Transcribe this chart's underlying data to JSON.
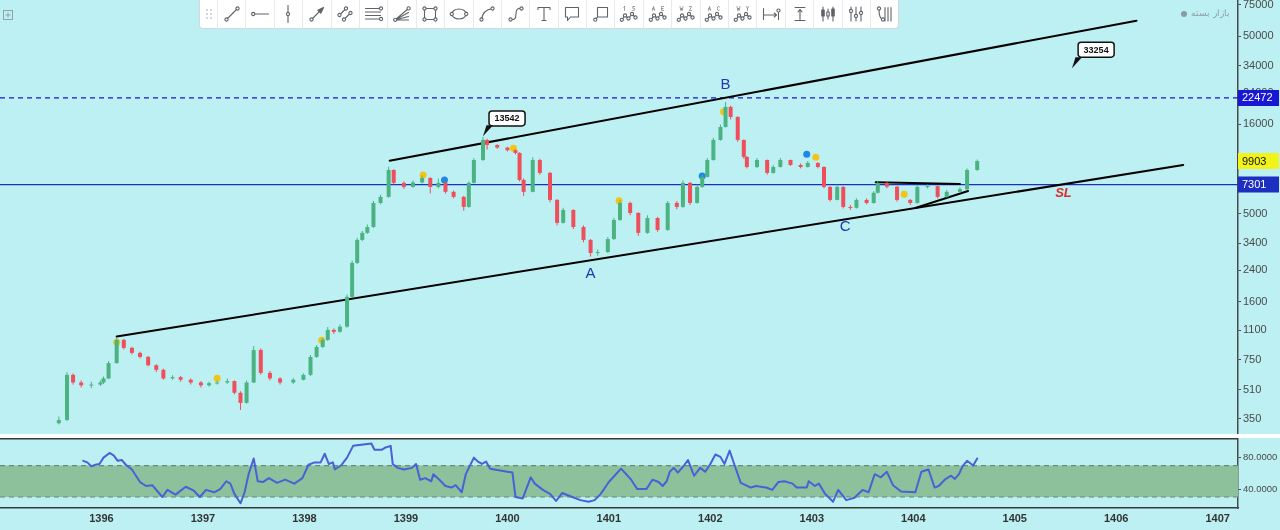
{
  "chart_data": [
    {
      "type": "candlestick",
      "x": [
        1395.58,
        1395.66,
        1395.72,
        1395.8,
        1395.9,
        1395.99,
        1396.02,
        1396.07,
        1396.15,
        1396.22,
        1396.3,
        1396.38,
        1396.46,
        1396.54,
        1396.61,
        1396.7,
        1396.78,
        1396.88,
        1396.98,
        1397.06,
        1397.14,
        1397.24,
        1397.31,
        1397.37,
        1397.43,
        1397.5,
        1397.57,
        1397.66,
        1397.76,
        1397.89,
        1397.99,
        1398.06,
        1398.12,
        1398.18,
        1398.23,
        1398.29,
        1398.35,
        1398.42,
        1398.47,
        1398.52,
        1398.57,
        1398.62,
        1398.68,
        1398.75,
        1398.83,
        1398.88,
        1398.98,
        1399.07,
        1399.16,
        1399.24,
        1399.32,
        1399.39,
        1399.47,
        1399.57,
        1399.62,
        1399.67,
        1399.76,
        1399.8,
        1399.9,
        1400.0,
        1400.08,
        1400.12,
        1400.16,
        1400.25,
        1400.32,
        1400.42,
        1400.49,
        1400.55,
        1400.65,
        1400.75,
        1400.82,
        1400.89,
        1400.99,
        1401.05,
        1401.11,
        1401.21,
        1401.29,
        1401.38,
        1401.48,
        1401.58,
        1401.67,
        1401.73,
        1401.8,
        1401.87,
        1401.92,
        1401.97,
        1402.03,
        1402.1,
        1402.15,
        1402.2,
        1402.27,
        1402.33,
        1402.36,
        1402.46,
        1402.56,
        1402.62,
        1402.69,
        1402.79,
        1402.89,
        1402.96,
        1403.06,
        1403.12,
        1403.18,
        1403.25,
        1403.31,
        1403.38,
        1403.44,
        1403.54,
        1403.61,
        1403.65,
        1403.74,
        1403.84,
        1403.97,
        1404.04,
        1404.14,
        1404.24,
        1404.33,
        1404.46,
        1404.53,
        1404.63
      ],
      "ohlc": [
        [
          330,
          360,
          325,
          344
        ],
        [
          344,
          640,
          340,
          618
        ],
        [
          618,
          630,
          545,
          560
        ],
        [
          560,
          575,
          525,
          540
        ],
        [
          540,
          565,
          520,
          545
        ],
        [
          545,
          575,
          535,
          560
        ],
        [
          560,
          605,
          550,
          590
        ],
        [
          590,
          740,
          585,
          720
        ],
        [
          720,
          1000,
          715,
          973
        ],
        [
          973,
          985,
          860,
          877
        ],
        [
          877,
          890,
          805,
          822
        ],
        [
          822,
          835,
          765,
          780
        ],
        [
          780,
          790,
          690,
          700
        ],
        [
          700,
          710,
          640,
          660
        ],
        [
          660,
          670,
          580,
          590
        ],
        [
          590,
          615,
          580,
          600
        ],
        [
          600,
          610,
          565,
          580
        ],
        [
          580,
          590,
          545,
          560
        ],
        [
          560,
          570,
          525,
          540
        ],
        [
          540,
          565,
          530,
          555
        ],
        [
          555,
          575,
          545,
          560
        ],
        [
          560,
          590,
          550,
          570
        ],
        [
          570,
          575,
          480,
          490
        ],
        [
          490,
          500,
          392,
          430
        ],
        [
          430,
          575,
          425,
          560
        ],
        [
          560,
          900,
          555,
          854
        ],
        [
          854,
          870,
          620,
          634
        ],
        [
          634,
          650,
          575,
          590
        ],
        [
          590,
          600,
          545,
          560
        ],
        [
          560,
          595,
          550,
          580
        ],
        [
          580,
          630,
          575,
          618
        ],
        [
          618,
          800,
          610,
          780
        ],
        [
          780,
          910,
          770,
          888
        ],
        [
          888,
          1000,
          875,
          973
        ],
        [
          973,
          1150,
          960,
          1108
        ],
        [
          1108,
          1130,
          1050,
          1080
        ],
        [
          1080,
          1190,
          1070,
          1155
        ],
        [
          1155,
          1750,
          1140,
          1700
        ],
        [
          1700,
          2720,
          1680,
          2640
        ],
        [
          2640,
          3650,
          2600,
          3560
        ],
        [
          3560,
          4000,
          3500,
          3900
        ],
        [
          3900,
          4350,
          3850,
          4210
        ],
        [
          4210,
          5900,
          4150,
          5750
        ],
        [
          5750,
          6400,
          5650,
          6220
        ],
        [
          6220,
          9200,
          6150,
          8820
        ],
        [
          8820,
          8900,
          7300,
          7460
        ],
        [
          7460,
          7600,
          6900,
          7080
        ],
        [
          7080,
          7700,
          7000,
          7500
        ],
        [
          7500,
          8200,
          7400,
          7950
        ],
        [
          7950,
          8050,
          6500,
          7080
        ],
        [
          7080,
          7900,
          6950,
          7460
        ],
        [
          7460,
          7600,
          6500,
          6640
        ],
        [
          6640,
          6750,
          6100,
          6220
        ],
        [
          6220,
          6300,
          5200,
          5460
        ],
        [
          5460,
          7600,
          5400,
          7460
        ],
        [
          7460,
          10300,
          7400,
          10040
        ],
        [
          10040,
          13542,
          9900,
          13020
        ],
        [
          13020,
          13200,
          11500,
          12200
        ],
        [
          12200,
          12300,
          11600,
          11800
        ],
        [
          11800,
          11900,
          11200,
          11400
        ],
        [
          11400,
          11500,
          10800,
          11000
        ],
        [
          11000,
          11100,
          7600,
          7750
        ],
        [
          7750,
          7900,
          6300,
          6640
        ],
        [
          6640,
          10400,
          6600,
          10040
        ],
        [
          10040,
          10200,
          8300,
          8490
        ],
        [
          8490,
          8600,
          5800,
          5980
        ],
        [
          5980,
          6050,
          4300,
          4440
        ],
        [
          4440,
          5400,
          4400,
          5250
        ],
        [
          5250,
          5300,
          4100,
          4210
        ],
        [
          4210,
          4300,
          3450,
          3560
        ],
        [
          3560,
          3600,
          2870,
          3005
        ],
        [
          3005,
          3150,
          2900,
          3040
        ],
        [
          3040,
          3700,
          3000,
          3600
        ],
        [
          3600,
          4750,
          3550,
          4610
        ],
        [
          4610,
          5950,
          4550,
          5750
        ],
        [
          5750,
          5850,
          4900,
          5050
        ],
        [
          5050,
          5100,
          3750,
          3900
        ],
        [
          3900,
          4900,
          3850,
          4730
        ],
        [
          4730,
          4800,
          3950,
          4050
        ],
        [
          4050,
          5900,
          4000,
          5750
        ],
        [
          5750,
          5900,
          5300,
          5460
        ],
        [
          5460,
          7700,
          5400,
          7460
        ],
        [
          7460,
          7550,
          5600,
          5750
        ],
        [
          5750,
          7300,
          5700,
          7080
        ],
        [
          7080,
          8300,
          7000,
          8060
        ],
        [
          8060,
          10300,
          8000,
          10040
        ],
        [
          10040,
          13400,
          9950,
          13020
        ],
        [
          13020,
          15900,
          12900,
          15400
        ],
        [
          15400,
          21300,
          15300,
          20000
        ],
        [
          20000,
          20300,
          17000,
          17550
        ],
        [
          17550,
          17700,
          12700,
          13020
        ],
        [
          13020,
          13100,
          10200,
          10450
        ],
        [
          10450,
          10550,
          9000,
          9170
        ],
        [
          9170,
          10300,
          9050,
          10040
        ],
        [
          10040,
          10100,
          8300,
          8490
        ],
        [
          8490,
          9400,
          8400,
          9170
        ],
        [
          9170,
          10300,
          9100,
          10040
        ],
        [
          10040,
          10100,
          9300,
          9410
        ],
        [
          9410,
          9600,
          9000,
          9170
        ],
        [
          9170,
          9900,
          9100,
          9660
        ],
        [
          9660,
          9750,
          9000,
          9170
        ],
        [
          9170,
          9250,
          6950,
          7080
        ],
        [
          7080,
          7150,
          5850,
          5980
        ],
        [
          5980,
          7300,
          5950,
          7080
        ],
        [
          7080,
          7150,
          5350,
          5460
        ],
        [
          5460,
          5600,
          5250,
          5400
        ],
        [
          5400,
          6100,
          5350,
          5980
        ],
        [
          5980,
          6100,
          5650,
          5750
        ],
        [
          5750,
          6700,
          5700,
          6560
        ],
        [
          6560,
          7600,
          6500,
          7460
        ],
        [
          7460,
          7550,
          6950,
          7100
        ],
        [
          7100,
          7150,
          5850,
          5980
        ],
        [
          5980,
          6050,
          5600,
          5750
        ],
        [
          5750,
          7250,
          5700,
          7080
        ],
        [
          7080,
          7300,
          6950,
          7150
        ],
        [
          7150,
          7200,
          6100,
          6220
        ],
        [
          6220,
          6800,
          6150,
          6640
        ],
        [
          6640,
          7050,
          6550,
          6870
        ],
        [
          6870,
          9000,
          6800,
          8820
        ],
        [
          8820,
          10100,
          8700,
          9903
        ]
      ],
      "colors": [
        "#4bb382",
        "#4bb382",
        "#ef4f5a",
        "#ef4f5a",
        "#4bb382",
        "#4bb382",
        "#4bb382",
        "#4bb382",
        "#4bb382",
        "#ef4f5a",
        "#ef4f5a",
        "#ef4f5a",
        "#ef4f5a",
        "#ef4f5a",
        "#ef4f5a",
        "#4bb382",
        "#ef4f5a",
        "#ef4f5a",
        "#ef4f5a",
        "#4bb382",
        "#4bb382",
        "#4bb382",
        "#ef4f5a",
        "#ef4f5a",
        "#4bb382",
        "#4bb382",
        "#ef4f5a",
        "#ef4f5a",
        "#ef4f5a",
        "#4bb382",
        "#4bb382",
        "#4bb382",
        "#4bb382",
        "#4bb382",
        "#4bb382",
        "#ef4f5a",
        "#4bb382",
        "#4bb382",
        "#4bb382",
        "#4bb382",
        "#4bb382",
        "#4bb382",
        "#4bb382",
        "#4bb382",
        "#4bb382",
        "#ef4f5a",
        "#ef4f5a",
        "#4bb382",
        "#4bb382",
        "#ef4f5a",
        "#4bb382",
        "#ef4f5a",
        "#ef4f5a",
        "#ef4f5a",
        "#4bb382",
        "#4bb382",
        "#4bb382",
        "#ef4f5a",
        "#ef4f5a",
        "#ef4f5a",
        "#ef4f5a",
        "#ef4f5a",
        "#ef4f5a",
        "#4bb382",
        "#ef4f5a",
        "#ef4f5a",
        "#ef4f5a",
        "#4bb382",
        "#ef4f5a",
        "#ef4f5a",
        "#ef4f5a",
        "#4bb382",
        "#4bb382",
        "#4bb382",
        "#4bb382",
        "#ef4f5a",
        "#ef4f5a",
        "#4bb382",
        "#ef4f5a",
        "#4bb382",
        "#ef4f5a",
        "#4bb382",
        "#ef4f5a",
        "#4bb382",
        "#4bb382",
        "#4bb382",
        "#4bb382",
        "#4bb382",
        "#4bb382",
        "#ef4f5a",
        "#ef4f5a",
        "#ef4f5a",
        "#ef4f5a",
        "#4bb382",
        "#ef4f5a",
        "#4bb382",
        "#4bb382",
        "#ef4f5a",
        "#ef4f5a",
        "#4bb382",
        "#ef4f5a",
        "#ef4f5a",
        "#ef4f5a",
        "#4bb382",
        "#ef4f5a",
        "#ef4f5a",
        "#4bb382",
        "#ef4f5a",
        "#4bb382",
        "#4bb382",
        "#ef4f5a",
        "#ef4f5a",
        "#ef4f5a",
        "#4bb382",
        "#4bb382",
        "#ef4f5a",
        "#4bb382",
        "#4bb382",
        "#4bb382",
        "#4bb382"
      ],
      "series": [
        {
          "type": "line",
          "x": [
            1396.15,
            1406.66
          ],
          "values": [
            1016,
            9410
          ],
          "color": "#000000"
        },
        {
          "type": "line",
          "x": [
            1398.84,
            1406.2
          ],
          "values": [
            9950,
            61200
          ],
          "color": "#000000"
        },
        {
          "type": "line",
          "x": [
            1403.63,
            1404.46
          ],
          "values": [
            7520,
            7360
          ],
          "color": "#000000"
        },
        {
          "type": "line",
          "x": [
            1404.02,
            1404.54
          ],
          "values": [
            5390,
            6720
          ],
          "color": "#000000"
        },
        {
          "type": "scatter",
          "x": [
            1396.15,
            1397.14,
            1398.17,
            1399.17,
            1400.06,
            1401.1,
            1402.13,
            1403.04,
            1403.91
          ],
          "values": [
            945,
            592,
            970,
            8270,
            11700,
            5920,
            18800,
            10400,
            6440
          ],
          "color": "#f0c419",
          "marker": "circle"
        },
        {
          "type": "scatter",
          "x": [
            1399.38,
            1401.92,
            1402.95
          ],
          "values": [
            7750,
            8160,
            10800
          ],
          "color": "#1e88e5",
          "marker": "circle"
        }
      ],
      "xlim": [
        1395,
        1407.2
      ],
      "ylim": [
        287,
        80000
      ],
      "log": true,
      "yticks": [
        350,
        510,
        750,
        1100,
        1600,
        2400,
        3400,
        5000,
        16000,
        24000,
        34000,
        50000,
        75000
      ],
      "tick_labels": "y",
      "ref_lines": [
        {
          "axis": "y",
          "value": 22472,
          "label": "22472",
          "color": "#1717d4",
          "line_style": "dashed"
        },
        {
          "axis": "y",
          "value": 7301,
          "label": "7301",
          "color": "#1c2fc0"
        }
      ],
      "annotations": [
        "بازار بسته",
        {
          "text": "13542",
          "x": 1399.76,
          "y": 13542
        },
        "33254",
        {
          "text": "A",
          "x": 1400.82,
          "y": 2870
        },
        {
          "text": "B",
          "x": 1402.15,
          "y": 21300
        },
        {
          "text": "C",
          "x": 1403.33,
          "y": 5250
        },
        "SL",
        "9903"
      ]
    },
    {
      "type": "line",
      "x": [
        1395.82,
        1395.86,
        1395.9,
        1395.94,
        1395.98,
        1396.02,
        1396.08,
        1396.12,
        1396.16,
        1396.2,
        1396.24,
        1396.3,
        1396.38,
        1396.44,
        1396.5,
        1396.56,
        1396.6,
        1396.65,
        1396.73,
        1396.83,
        1396.91,
        1396.97,
        1397.03,
        1397.11,
        1397.17,
        1397.23,
        1397.27,
        1397.31,
        1397.37,
        1397.41,
        1397.45,
        1397.5,
        1397.54,
        1397.59,
        1397.65,
        1397.73,
        1397.81,
        1397.9,
        1397.98,
        1398.04,
        1398.1,
        1398.16,
        1398.2,
        1398.24,
        1398.28,
        1398.3,
        1398.36,
        1398.42,
        1398.48,
        1398.54,
        1398.66,
        1398.69,
        1398.76,
        1398.8,
        1398.85,
        1398.87,
        1398.92,
        1398.98,
        1399.06,
        1399.1,
        1399.14,
        1399.19,
        1399.25,
        1399.27,
        1399.33,
        1399.39,
        1399.45,
        1399.49,
        1399.55,
        1399.59,
        1399.67,
        1399.71,
        1399.75,
        1399.79,
        1399.83,
        1400.05,
        1400.08,
        1400.15,
        1400.23,
        1400.27,
        1400.35,
        1400.42,
        1400.48,
        1400.54,
        1400.64,
        1400.72,
        1400.8,
        1400.86,
        1400.92,
        1401.0,
        1401.12,
        1401.22,
        1401.28,
        1401.37,
        1401.43,
        1401.49,
        1401.53,
        1401.57,
        1401.6,
        1401.64,
        1401.68,
        1401.74,
        1401.78,
        1401.84,
        1401.9,
        1401.95,
        1402.0,
        1402.05,
        1402.1,
        1402.14,
        1402.19,
        1402.24,
        1402.3,
        1402.4,
        1402.45,
        1402.55,
        1402.61,
        1402.67,
        1402.73,
        1402.81,
        1402.85,
        1402.95,
        1402.97,
        1403.03,
        1403.07,
        1403.13,
        1403.21,
        1403.26,
        1403.34,
        1403.42,
        1403.5,
        1403.56,
        1403.62,
        1403.68,
        1403.74,
        1403.8,
        1403.88,
        1404.02,
        1404.08,
        1404.15,
        1404.21,
        1404.25,
        1404.31,
        1404.37,
        1404.41,
        1404.45,
        1404.49,
        1404.53,
        1404.59,
        1404.63
      ],
      "values": [
        76,
        74,
        69,
        71,
        72,
        80,
        86,
        83,
        76,
        77,
        71,
        65,
        49,
        44,
        45,
        36,
        30,
        39,
        33,
        43,
        38,
        30,
        39,
        36,
        40,
        50,
        47,
        34,
        22,
        36,
        59,
        79,
        50,
        49,
        54,
        48,
        52,
        47,
        54,
        71,
        74,
        74,
        85,
        72,
        74,
        65,
        70,
        80,
        95,
        96,
        98,
        90,
        90,
        93,
        95,
        72,
        67,
        65,
        67,
        72,
        52,
        54,
        50,
        59,
        52,
        44,
        42,
        45,
        36,
        59,
        80,
        75,
        72,
        75,
        66,
        61,
        30,
        28,
        55,
        47,
        39,
        34,
        25,
        35,
        30,
        26,
        24,
        26,
        34,
        49,
        66,
        52,
        40,
        40,
        52,
        49,
        44,
        50,
        62,
        67,
        61,
        70,
        77,
        57,
        67,
        62,
        72,
        84,
        81,
        72,
        89,
        70,
        48,
        42,
        44,
        42,
        39,
        49,
        50,
        47,
        42,
        42,
        50,
        44,
        47,
        34,
        24,
        39,
        26,
        29,
        39,
        36,
        59,
        55,
        62,
        45,
        37,
        36,
        62,
        65,
        42,
        44,
        52,
        57,
        53,
        59,
        70,
        76,
        70,
        79
      ],
      "color": "#4b5fd6",
      "xlim": [
        1395,
        1407.2
      ],
      "xticks": [
        1396,
        1397,
        1398,
        1399,
        1400,
        1401,
        1402,
        1403,
        1404,
        1405,
        1406,
        1407
      ],
      "ylim": [
        16,
        105
      ],
      "yticks": [
        {
          "value": 80,
          "label": "80.0000"
        },
        {
          "value": 40,
          "label": "40.0000"
        }
      ],
      "bands": [
        {
          "axis": "y",
          "from": 30,
          "to": 70,
          "color": "#8dc19c"
        }
      ],
      "ref_lines": [
        {
          "axis": "y",
          "value": 70,
          "color": "#6a8a76",
          "line_style": "dashed"
        },
        {
          "axis": "y",
          "value": 30,
          "color": "#6a8a76",
          "line_style": "dashed"
        }
      ]
    }
  ]
}
